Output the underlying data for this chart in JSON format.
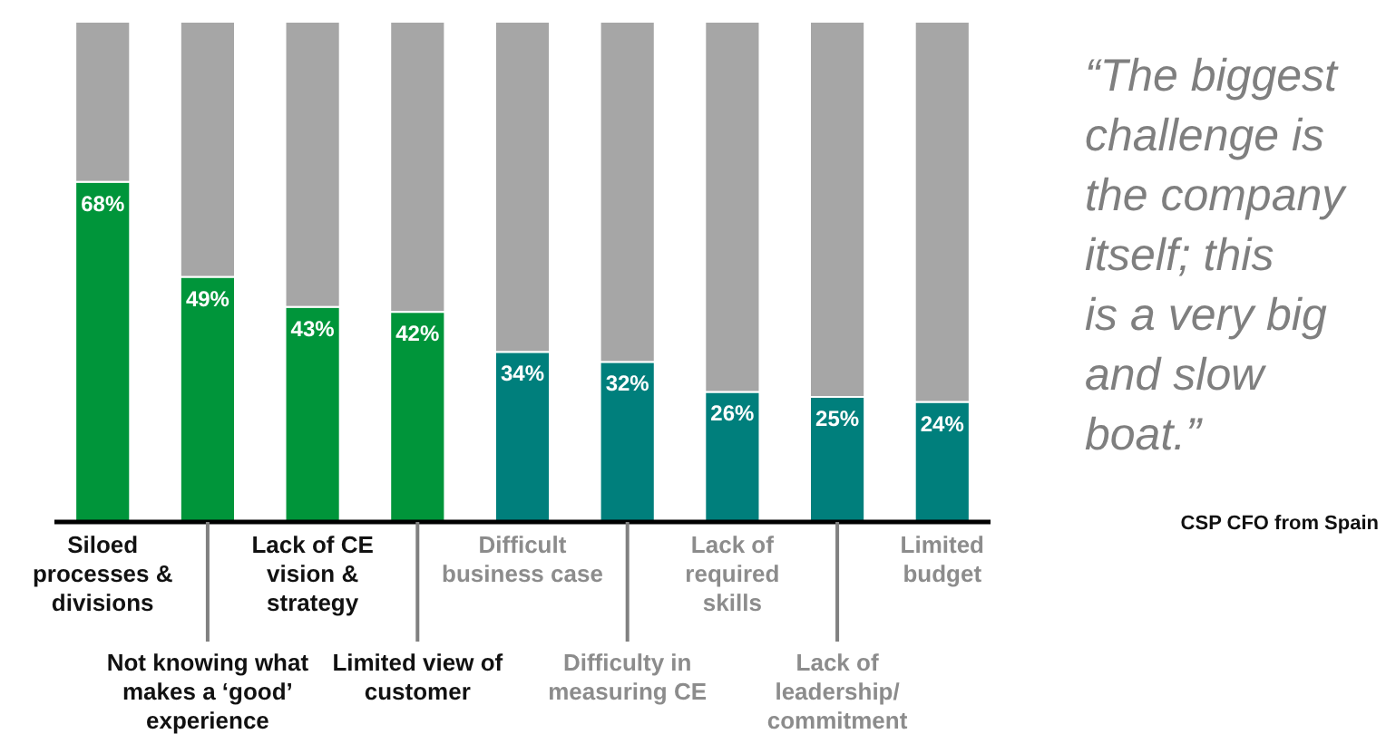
{
  "chart_data": {
    "type": "bar",
    "stacked": true,
    "categories": [
      "Siloed processes & divisions",
      "Not knowing what makes a ‘good’ experience",
      "Lack of CE vision & strategy",
      "Limited view of customer",
      "Difficult business case",
      "Difficulty in measuring CE",
      "Lack of required skills",
      "Lack of leadership/ commitment",
      "Limited budget"
    ],
    "series": [
      {
        "colors": [
          "#00953a",
          "#00953a",
          "#00953a",
          "#00953a",
          "#007f7c",
          "#007f7c",
          "#007f7c",
          "#007f7c",
          "#007f7c"
        ],
        "values": [
          68,
          49,
          43,
          42,
          34,
          32,
          26,
          25,
          24
        ],
        "value_labels": [
          "68%",
          "49%",
          "43%",
          "42%",
          "34%",
          "32%",
          "26%",
          "25%",
          "24%"
        ]
      },
      {
        "color": "#a6a6a6",
        "values": [
          32,
          51,
          57,
          58,
          66,
          68,
          74,
          75,
          76
        ]
      }
    ],
    "ylim": [
      0,
      100
    ],
    "tick_labels": "x",
    "annotations": [
      "“The biggest challenge is the company itself; this is a very big and slow boat.”",
      "CSP CFO from Spain"
    ]
  }
}
